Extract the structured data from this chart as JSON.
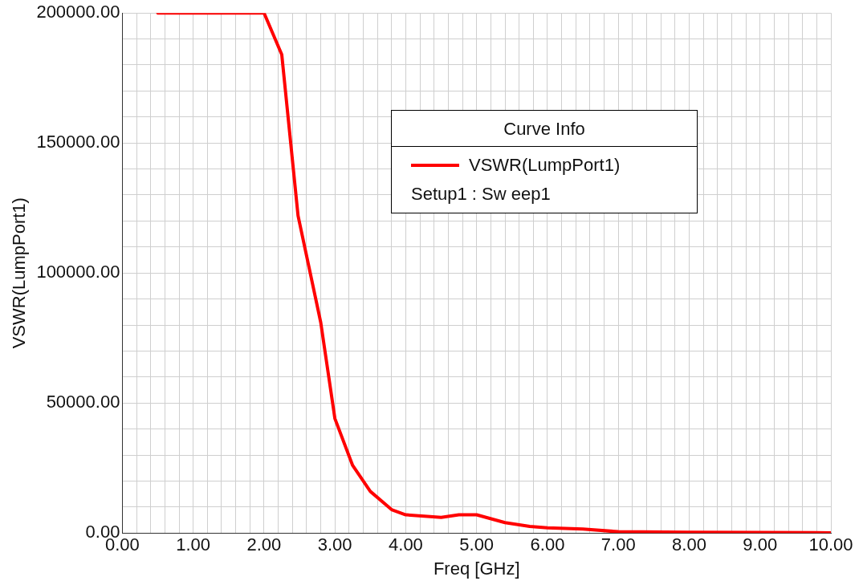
{
  "chart_data": {
    "type": "line",
    "xlabel": "Freq [GHz]",
    "ylabel": "VSWR(LumpPort1)",
    "legend_title": "Curve Info",
    "legend": "top right",
    "grid": true,
    "marker": "none",
    "line_style": "solid",
    "annotations": [
      "Setup1 : Sw eep1"
    ],
    "xlim": [
      0,
      10
    ],
    "ylim": [
      0,
      200000
    ],
    "xticks": [
      {
        "value": 0,
        "label": "0.00"
      },
      {
        "value": 0.2,
        "label": null
      },
      {
        "value": 0.4,
        "label": null
      },
      {
        "value": 0.6,
        "label": null
      },
      {
        "value": 0.8,
        "label": null
      },
      {
        "value": 1,
        "label": "1.00"
      },
      {
        "value": 1.2,
        "label": null
      },
      {
        "value": 1.4,
        "label": null
      },
      {
        "value": 1.6,
        "label": null
      },
      {
        "value": 1.8,
        "label": null
      },
      {
        "value": 2,
        "label": "2.00"
      },
      {
        "value": 2.2,
        "label": null
      },
      {
        "value": 2.4,
        "label": null
      },
      {
        "value": 2.6,
        "label": null
      },
      {
        "value": 2.8,
        "label": null
      },
      {
        "value": 3,
        "label": "3.00"
      },
      {
        "value": 3.2,
        "label": null
      },
      {
        "value": 3.4,
        "label": null
      },
      {
        "value": 3.6,
        "label": null
      },
      {
        "value": 3.8,
        "label": null
      },
      {
        "value": 4,
        "label": "4.00"
      },
      {
        "value": 4.2,
        "label": null
      },
      {
        "value": 4.4,
        "label": null
      },
      {
        "value": 4.6,
        "label": null
      },
      {
        "value": 4.8,
        "label": null
      },
      {
        "value": 5,
        "label": "5.00"
      },
      {
        "value": 5.2,
        "label": null
      },
      {
        "value": 5.4,
        "label": null
      },
      {
        "value": 5.6,
        "label": null
      },
      {
        "value": 5.8,
        "label": null
      },
      {
        "value": 6,
        "label": "6.00"
      },
      {
        "value": 6.2,
        "label": null
      },
      {
        "value": 6.4,
        "label": null
      },
      {
        "value": 6.6,
        "label": null
      },
      {
        "value": 6.8,
        "label": null
      },
      {
        "value": 7,
        "label": "7.00"
      },
      {
        "value": 7.2,
        "label": null
      },
      {
        "value": 7.4,
        "label": null
      },
      {
        "value": 7.6,
        "label": null
      },
      {
        "value": 7.8,
        "label": null
      },
      {
        "value": 8,
        "label": "8.00"
      },
      {
        "value": 8.2,
        "label": null
      },
      {
        "value": 8.4,
        "label": null
      },
      {
        "value": 8.6,
        "label": null
      },
      {
        "value": 8.8,
        "label": null
      },
      {
        "value": 9,
        "label": "9.00"
      },
      {
        "value": 9.2,
        "label": null
      },
      {
        "value": 9.4,
        "label": null
      },
      {
        "value": 9.6,
        "label": null
      },
      {
        "value": 9.8,
        "label": null
      },
      {
        "value": 10,
        "label": "10.00"
      }
    ],
    "yticks": [
      {
        "value": 0,
        "label": "0.00"
      },
      {
        "value": 10000,
        "label": null
      },
      {
        "value": 20000,
        "label": null
      },
      {
        "value": 30000,
        "label": null
      },
      {
        "value": 40000,
        "label": null
      },
      {
        "value": 50000,
        "label": "50000.00"
      },
      {
        "value": 60000,
        "label": null
      },
      {
        "value": 70000,
        "label": null
      },
      {
        "value": 80000,
        "label": null
      },
      {
        "value": 90000,
        "label": null
      },
      {
        "value": 100000,
        "label": "100000.00"
      },
      {
        "value": 110000,
        "label": null
      },
      {
        "value": 120000,
        "label": null
      },
      {
        "value": 130000,
        "label": null
      },
      {
        "value": 140000,
        "label": null
      },
      {
        "value": 150000,
        "label": "150000.00"
      },
      {
        "value": 160000,
        "label": null
      },
      {
        "value": 170000,
        "label": null
      },
      {
        "value": 180000,
        "label": null
      },
      {
        "value": 190000,
        "label": null
      },
      {
        "value": 200000,
        "label": "200000.00"
      }
    ],
    "series": [
      {
        "name": "VSWR(LumpPort1)",
        "color": "#ff0000",
        "x": [
          0.5,
          1,
          1.5,
          2,
          2.25,
          2.48,
          2.8,
          3,
          3.25,
          3.5,
          3.8,
          4,
          4.5,
          4.75,
          5,
          5.4,
          5.75,
          6,
          6.5,
          7,
          8,
          9,
          10
        ],
        "values": [
          200000,
          200000,
          200000,
          200000,
          184000,
          122000,
          81000,
          44000,
          26000,
          16000,
          9000,
          7000,
          6000,
          7000,
          7000,
          4000,
          2500,
          2000,
          1500,
          500,
          300,
          200,
          100
        ]
      }
    ]
  }
}
